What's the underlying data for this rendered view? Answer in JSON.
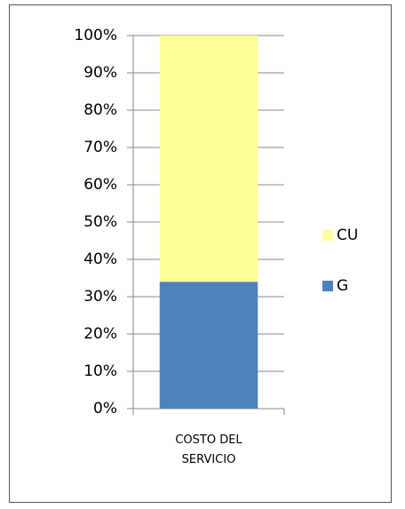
{
  "chart_data": {
    "type": "stacked_bar",
    "categories": [
      "COSTO DEL SERVICIO"
    ],
    "series": [
      {
        "name": "G",
        "color": "#4f81bd",
        "values": [
          34
        ]
      },
      {
        "name": "CU",
        "color": "#ffff99",
        "values": [
          66
        ]
      }
    ],
    "ylim": [
      0,
      100
    ],
    "yticks": [
      {
        "value": 0,
        "label": "0%"
      },
      {
        "value": 10,
        "label": "10%"
      },
      {
        "value": 20,
        "label": "20%"
      },
      {
        "value": 30,
        "label": "30%"
      },
      {
        "value": 40,
        "label": "40%"
      },
      {
        "value": 50,
        "label": "50%"
      },
      {
        "value": 60,
        "label": "60%"
      },
      {
        "value": 70,
        "label": "70%"
      },
      {
        "value": 80,
        "label": "80%"
      },
      {
        "value": 90,
        "label": "90%"
      },
      {
        "value": 100,
        "label": "100%"
      }
    ],
    "grid": true,
    "legend": "right"
  }
}
